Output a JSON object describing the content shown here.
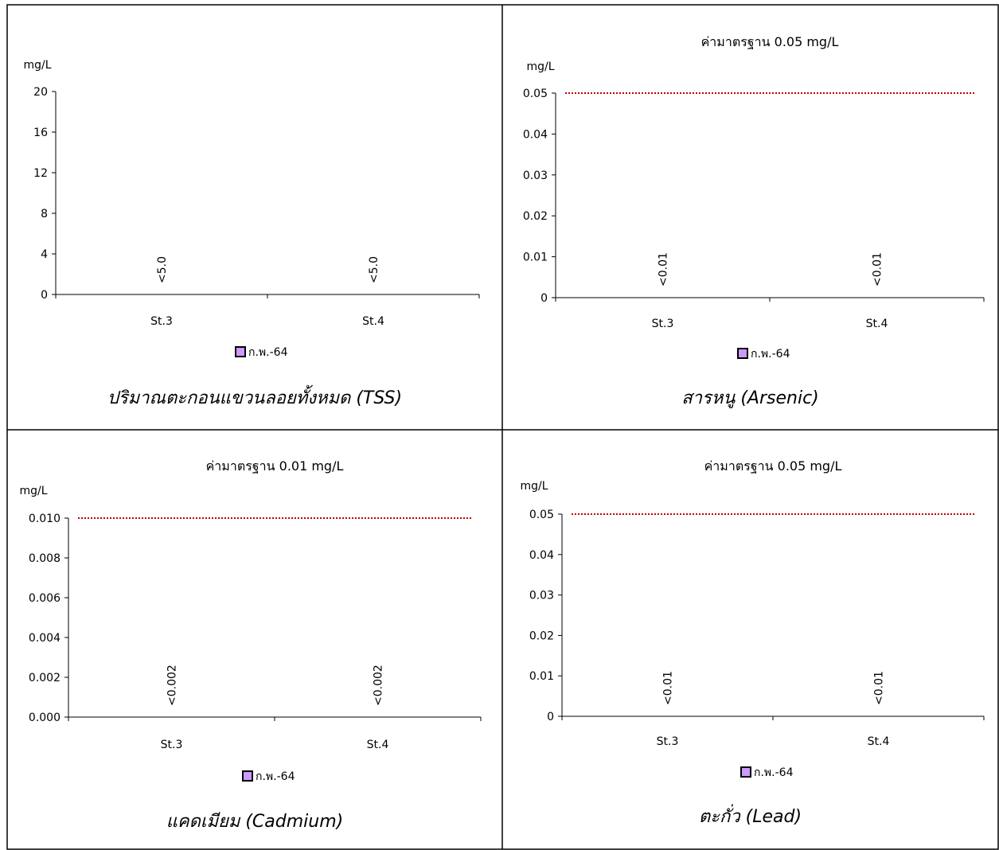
{
  "legend_swatch_color": "#cc99ff",
  "standard_line_color": "#c00000",
  "chart_data": [
    {
      "type": "bar",
      "caption": "ปริมาณตะกอนแขวนลอยทั้งหมด (TSS)",
      "title": "",
      "ylabel": "mg/L",
      "categories": [
        "St.3",
        "St.4"
      ],
      "series": [
        {
          "name": "ก.พ.-64",
          "values": [
            0,
            0
          ]
        }
      ],
      "data_labels": [
        "<5.0",
        "<5.0"
      ],
      "ylim": [
        0,
        20
      ],
      "yticks": [
        "0",
        "4",
        "8",
        "12",
        "16",
        "20"
      ],
      "standard": null,
      "grid": false,
      "legend": "bottom"
    },
    {
      "type": "bar",
      "caption": "สารหนู (Arsenic)",
      "title": "ค่ามาตรฐาน 0.05 mg/L",
      "ylabel": "mg/L",
      "categories": [
        "St.3",
        "St.4"
      ],
      "series": [
        {
          "name": "ก.พ.-64",
          "values": [
            0,
            0
          ]
        }
      ],
      "data_labels": [
        "<0.01",
        "<0.01"
      ],
      "ylim": [
        0,
        0.05
      ],
      "yticks": [
        "0",
        "0.01",
        "0.02",
        "0.03",
        "0.04",
        "0.05"
      ],
      "standard": 0.05,
      "grid": false,
      "legend": "bottom"
    },
    {
      "type": "bar",
      "caption": "แคดเมียม (Cadmium)",
      "title": "ค่ามาตรฐาน 0.01 mg/L",
      "ylabel": "mg/L",
      "categories": [
        "St.3",
        "St.4"
      ],
      "series": [
        {
          "name": "ก.พ.-64",
          "values": [
            0,
            0
          ]
        }
      ],
      "data_labels": [
        "<0.002",
        "<0.002"
      ],
      "ylim": [
        0,
        0.01
      ],
      "yticks": [
        "0.000",
        "0.002",
        "0.004",
        "0.006",
        "0.008",
        "0.010"
      ],
      "standard": 0.01,
      "grid": false,
      "legend": "bottom"
    },
    {
      "type": "bar",
      "caption": "ตะกั่ว (Lead)",
      "title": "ค่ามาตรฐาน 0.05 mg/L",
      "ylabel": "mg/L",
      "categories": [
        "St.3",
        "St.4"
      ],
      "series": [
        {
          "name": "ก.พ.-64",
          "values": [
            0,
            0
          ]
        }
      ],
      "data_labels": [
        "<0.01",
        "<0.01"
      ],
      "ylim": [
        0,
        0.05
      ],
      "yticks": [
        "0",
        "0.01",
        "0.02",
        "0.03",
        "0.04",
        "0.05"
      ],
      "standard": 0.05,
      "grid": false,
      "legend": "bottom"
    }
  ]
}
